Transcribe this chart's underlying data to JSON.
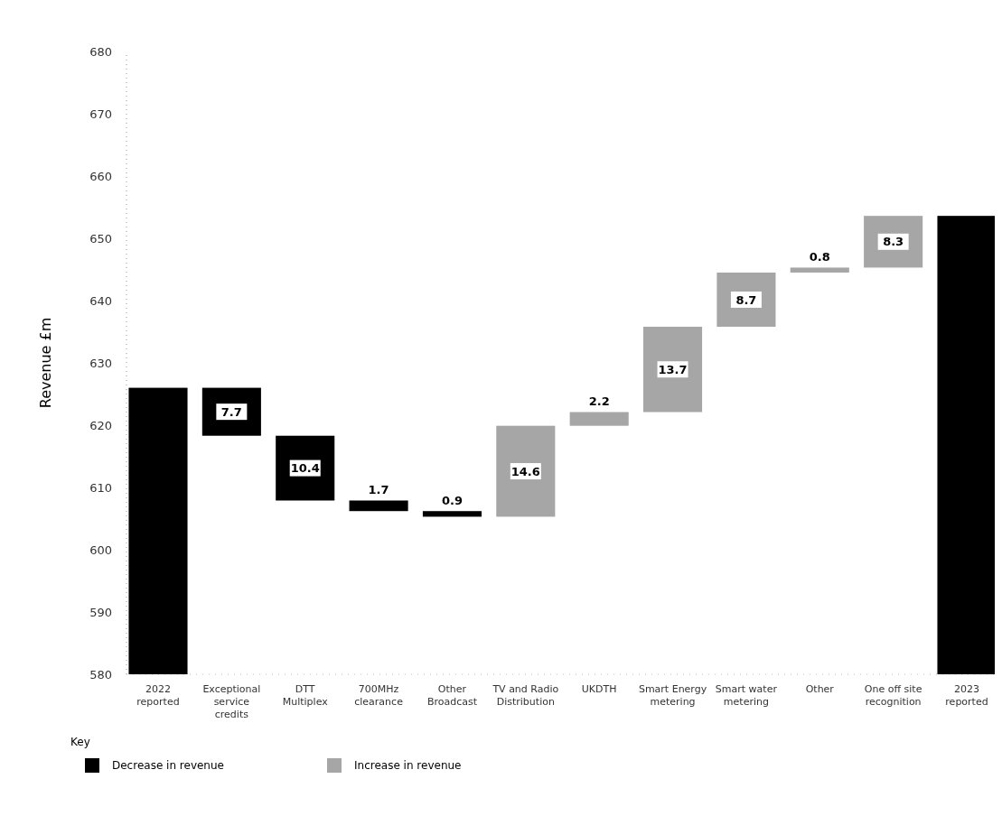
{
  "chart_data": {
    "type": "bar",
    "ylabel": "Revenue £m",
    "legend_title": "Key",
    "legend": "bottom left",
    "categories": [
      "2022 reported",
      "Exceptional service credits",
      "DTT Multiplex",
      "700MHz clearance",
      "Other Broadcast",
      "TV and Radio Distribution",
      "UKDTH",
      "Smart Energy metering",
      "Smart water metering",
      "Other",
      "One off site recognition",
      "2023 reported"
    ],
    "series": [
      {
        "color": "#000000",
        "values": [
          626.0,
          null,
          null,
          null,
          null,
          null,
          null,
          null,
          null,
          null,
          null,
          653.6
        ]
      },
      {
        "name": "Decrease in revenue",
        "color": "#000000",
        "base": [
          null,
          618.3,
          607.9,
          606.2,
          605.3,
          null,
          null,
          null,
          null,
          null,
          null,
          null
        ],
        "values": [
          null,
          7.7,
          10.4,
          1.7,
          0.9,
          null,
          null,
          null,
          null,
          null,
          null,
          null
        ],
        "data_labels": true
      },
      {
        "name": "Increase in revenue",
        "color": "#a6a6a6",
        "base": [
          null,
          null,
          null,
          null,
          null,
          605.3,
          619.9,
          622.1,
          635.8,
          644.5,
          645.3,
          null
        ],
        "values": [
          null,
          null,
          null,
          null,
          null,
          14.6,
          2.2,
          13.7,
          8.7,
          0.8,
          8.3,
          null
        ],
        "data_labels": true
      }
    ],
    "ylim": [
      580,
      680
    ],
    "yticks": [
      580,
      590,
      600,
      610,
      620,
      630,
      640,
      650,
      660,
      670,
      680
    ]
  }
}
